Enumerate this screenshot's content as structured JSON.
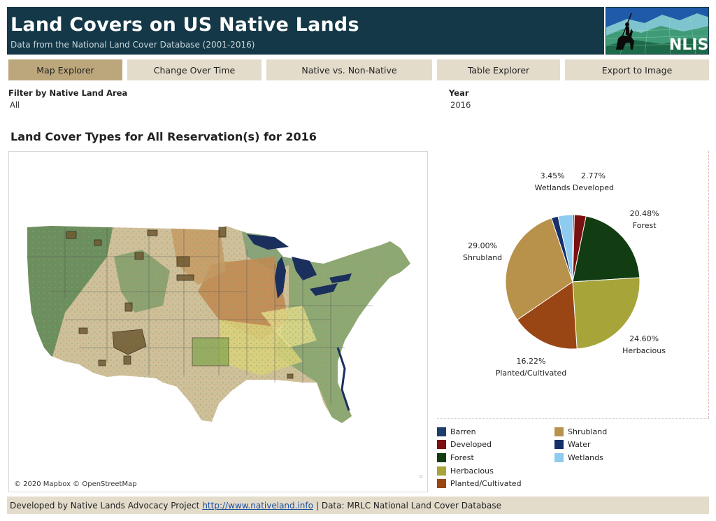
{
  "header": {
    "title": "Land Covers on US Native Lands",
    "subtitle": "Data from the National Land Cover Database (2001-2016)",
    "logo_text": "NLIS"
  },
  "tabs": [
    {
      "label": "Map Explorer",
      "active": true
    },
    {
      "label": "Change Over Time",
      "active": false
    },
    {
      "label": "Native vs. Non-Native",
      "active": false
    },
    {
      "label": "Table Explorer",
      "active": false
    },
    {
      "label": "Export to Image",
      "active": false
    }
  ],
  "filters": {
    "area_label": "Filter by Native Land Area",
    "area_value": "All",
    "year_label": "Year",
    "year_value": "2016"
  },
  "section_title": "Land Cover Types for All Reservation(s) for 2016",
  "map": {
    "attribution": "© 2020 Mapbox © OpenStreetMap",
    "colors": {
      "land": "#cfc09a",
      "forest": "#5b8a5e",
      "crop": "#c08a52",
      "herb": "#d9d27a",
      "water": "#1a2f5c",
      "lakes": "#d2dde3",
      "boundary": "#555555"
    }
  },
  "chart_data": {
    "type": "pie",
    "slices": [
      {
        "label": "Barren",
        "value": 0.4,
        "display": "",
        "color": "#1f3e6e"
      },
      {
        "label": "Developed",
        "value": 2.77,
        "display": "2.77%",
        "color": "#7a1010"
      },
      {
        "label": "Forest",
        "value": 20.48,
        "display": "20.48%",
        "color": "#123c12"
      },
      {
        "label": "Herbacious",
        "value": 24.6,
        "display": "24.60%",
        "color": "#a7a53a"
      },
      {
        "label": "Planted/Cultivated",
        "value": 16.22,
        "display": "16.22%",
        "color": "#9a4514"
      },
      {
        "label": "Shrubland",
        "value": 29.0,
        "display": "29.00%",
        "color": "#b8924a"
      },
      {
        "label": "Water",
        "value": 1.6,
        "display": "",
        "color": "#162e6a"
      },
      {
        "label": "Wetlands",
        "value": 3.45,
        "display": "3.45%",
        "color": "#8ecbf0"
      }
    ],
    "legend": [
      "Barren",
      "Developed",
      "Forest",
      "Herbacious",
      "Planted/Cultivated",
      "Shrubland",
      "Water",
      "Wetlands"
    ]
  },
  "footer": {
    "prefix": "Developed by Native Lands Advocacy Project",
    "link": "http://www.nativeland.info",
    "suffix": "| Data: MRLC National Land Cover Database"
  }
}
